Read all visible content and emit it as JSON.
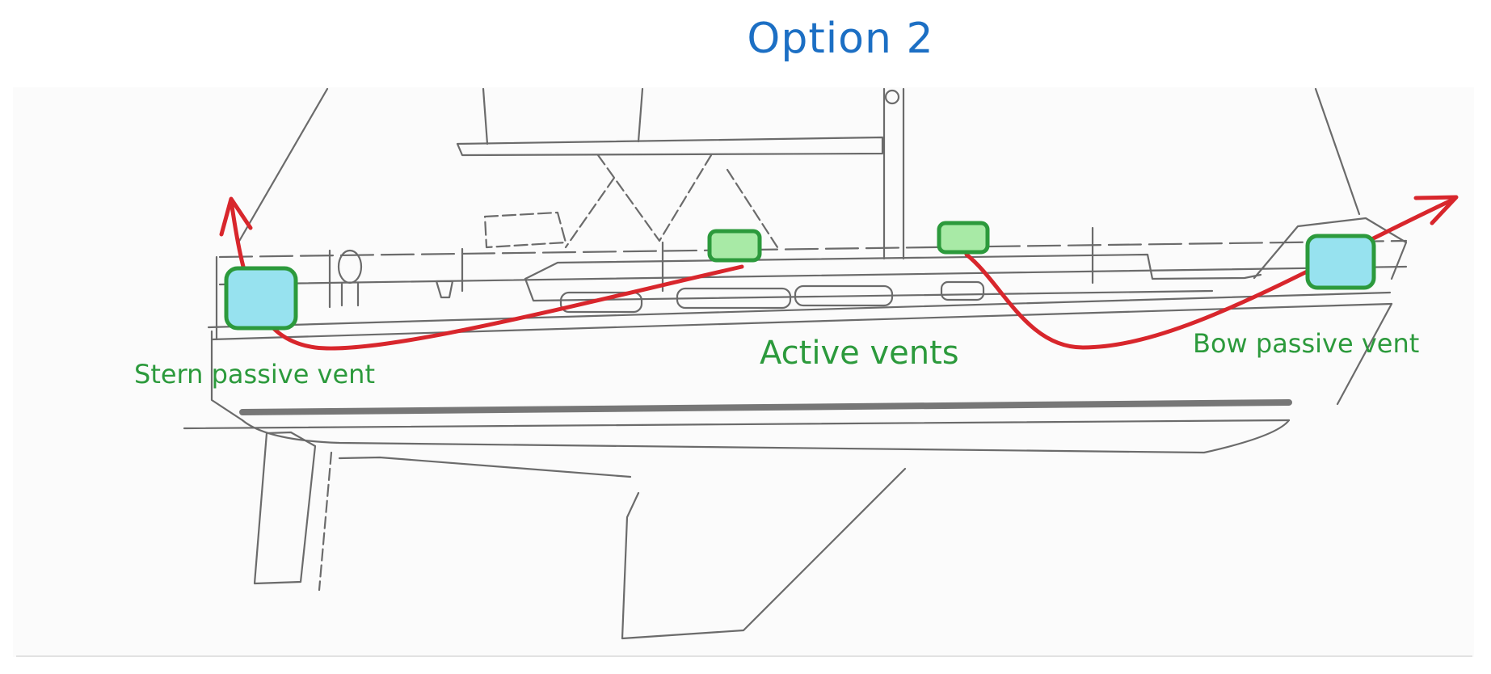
{
  "title": "Option 2",
  "labels": {
    "stern": "Stern passive vent",
    "active": "Active vents",
    "bow": "Bow passive vent"
  },
  "colors": {
    "title": "#1c6fc4",
    "label": "#2c9a3c",
    "arrow": "#d8262c",
    "vent_border": "#2c9a3c",
    "passive_fill": "#97e2ef",
    "active_fill": "#a8eaa6",
    "drawing": "#6b6b6b"
  }
}
